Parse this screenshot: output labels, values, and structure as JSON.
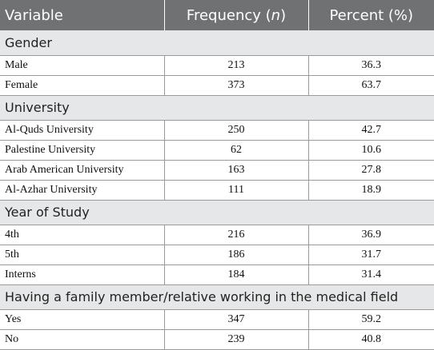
{
  "table": {
    "header": [
      "Variable",
      [
        "Frequency (",
        "n",
        ")"
      ],
      "Percent (%)"
    ],
    "sections": [
      {
        "title": "Gender",
        "rows": [
          [
            "Male",
            213,
            36.3
          ],
          [
            "Female",
            373,
            63.7
          ]
        ]
      },
      {
        "title": "University",
        "rows": [
          [
            "Al-Quds University",
            250,
            42.7
          ],
          [
            "Palestine University",
            62,
            10.6
          ],
          [
            "Arab American University",
            163,
            27.8
          ],
          [
            "Al-Azhar University",
            111,
            18.9
          ]
        ]
      },
      {
        "title": "Year of Study",
        "rows": [
          [
            "4th",
            216,
            36.9
          ],
          [
            "5th",
            186,
            31.7
          ],
          [
            "Interns",
            184,
            31.4
          ]
        ]
      },
      {
        "title": "Having a family member/relative working in the medical field",
        "rows": [
          [
            "Yes",
            347,
            59.2
          ],
          [
            "No",
            239,
            40.8
          ]
        ]
      }
    ]
  }
}
